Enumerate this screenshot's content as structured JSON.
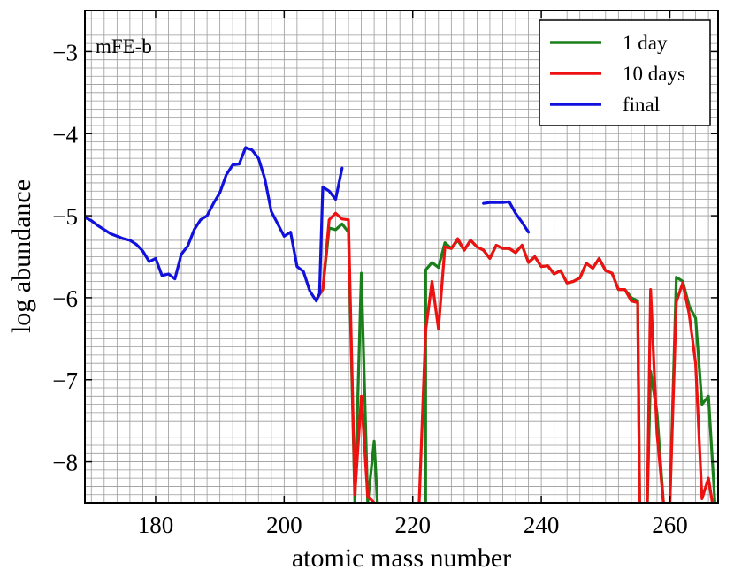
{
  "chart_data": {
    "type": "line",
    "xlabel": "atomic mass number",
    "ylabel": "log abundance",
    "xlim": [
      169,
      267.5
    ],
    "ylim": [
      -8.5,
      -2.5
    ],
    "x_ticks": [
      180,
      200,
      220,
      240,
      260
    ],
    "y_ticks": [
      -8,
      -7,
      -6,
      -5,
      -4,
      -3
    ],
    "x_tick_labels": [
      "180",
      "200",
      "220",
      "240",
      "260"
    ],
    "y_tick_labels": [
      "−8",
      "−7",
      "−6",
      "−5",
      "−4",
      "−3"
    ],
    "minor_grid": {
      "x_step": 2,
      "y_step": 0.1
    },
    "grid": true,
    "legend_position": "top-right",
    "annotation": "mFE-b",
    "series": [
      {
        "name": "1 day",
        "color": "#1a7f1a",
        "segments": [
          [
            [
              205,
              -6.02
            ],
            [
              206,
              -5.9
            ],
            [
              207,
              -5.15
            ],
            [
              208,
              -5.17
            ],
            [
              209,
              -5.1
            ],
            [
              210,
              -5.2
            ],
            [
              211,
              -8.5
            ],
            [
              212,
              -5.7
            ],
            [
              213,
              -8.5
            ],
            [
              214,
              -7.75
            ],
            [
              214.5,
              -8.5
            ]
          ],
          [
            [
              222,
              -8.5
            ],
            [
              222,
              -5.66
            ],
            [
              223,
              -5.57
            ],
            [
              224,
              -5.63
            ],
            [
              225,
              -5.33
            ],
            [
              226,
              -5.4
            ],
            [
              227,
              -5.3
            ],
            [
              228,
              -5.42
            ],
            [
              229,
              -5.3
            ],
            [
              230,
              -5.38
            ],
            [
              231,
              -5.42
            ],
            [
              232,
              -5.52
            ],
            [
              233,
              -5.36
            ],
            [
              234,
              -5.4
            ],
            [
              235,
              -5.4
            ],
            [
              236,
              -5.45
            ],
            [
              237,
              -5.36
            ],
            [
              238,
              -5.57
            ],
            [
              239,
              -5.5
            ],
            [
              240,
              -5.62
            ],
            [
              241,
              -5.61
            ],
            [
              242,
              -5.71
            ],
            [
              243,
              -5.67
            ],
            [
              244,
              -5.82
            ],
            [
              245,
              -5.8
            ],
            [
              246,
              -5.76
            ],
            [
              247,
              -5.58
            ],
            [
              248,
              -5.64
            ],
            [
              249,
              -5.52
            ],
            [
              250,
              -5.67
            ],
            [
              251,
              -5.7
            ],
            [
              252,
              -5.9
            ],
            [
              253,
              -5.9
            ],
            [
              254,
              -6.0
            ],
            [
              255,
              -6.04
            ],
            [
              255.3,
              -8.5
            ]
          ],
          [
            [
              256.5,
              -8.5
            ],
            [
              257,
              -6.9
            ],
            [
              258,
              -7.4
            ],
            [
              259,
              -8.5
            ]
          ],
          [
            [
              260,
              -8.5
            ],
            [
              261,
              -5.75
            ],
            [
              262,
              -5.8
            ],
            [
              263,
              -6.1
            ],
            [
              264,
              -6.25
            ],
            [
              265,
              -7.3
            ],
            [
              266,
              -7.2
            ],
            [
              267,
              -8.5
            ]
          ]
        ]
      },
      {
        "name": "10 days",
        "color": "#ee1111",
        "segments": [
          [
            [
              205,
              -6.02
            ],
            [
              206,
              -5.9
            ],
            [
              207,
              -5.05
            ],
            [
              208,
              -4.97
            ],
            [
              209,
              -5.04
            ],
            [
              210,
              -5.05
            ],
            [
              211,
              -8.4
            ],
            [
              212,
              -7.2
            ],
            [
              213,
              -8.42
            ],
            [
              214,
              -8.5
            ]
          ],
          [
            [
              221,
              -8.5
            ],
            [
              222,
              -6.4
            ],
            [
              223,
              -5.8
            ],
            [
              224,
              -6.38
            ],
            [
              225,
              -5.38
            ],
            [
              226,
              -5.4
            ],
            [
              227,
              -5.28
            ],
            [
              228,
              -5.42
            ],
            [
              229,
              -5.3
            ],
            [
              230,
              -5.38
            ],
            [
              231,
              -5.42
            ],
            [
              232,
              -5.52
            ],
            [
              233,
              -5.36
            ],
            [
              234,
              -5.4
            ],
            [
              235,
              -5.4
            ],
            [
              236,
              -5.45
            ],
            [
              237,
              -5.36
            ],
            [
              238,
              -5.57
            ],
            [
              239,
              -5.5
            ],
            [
              240,
              -5.62
            ],
            [
              241,
              -5.61
            ],
            [
              242,
              -5.71
            ],
            [
              243,
              -5.67
            ],
            [
              244,
              -5.82
            ],
            [
              245,
              -5.8
            ],
            [
              246,
              -5.76
            ],
            [
              247,
              -5.58
            ],
            [
              248,
              -5.64
            ],
            [
              249,
              -5.52
            ],
            [
              250,
              -5.67
            ],
            [
              251,
              -5.7
            ],
            [
              252,
              -5.9
            ],
            [
              253,
              -5.9
            ],
            [
              254,
              -6.04
            ],
            [
              255,
              -6.06
            ],
            [
              255.3,
              -8.5
            ]
          ],
          [
            [
              256.5,
              -8.5
            ],
            [
              257,
              -5.9
            ],
            [
              258,
              -7.65
            ],
            [
              259,
              -8.5
            ]
          ],
          [
            [
              260,
              -8.5
            ],
            [
              261,
              -6.05
            ],
            [
              262,
              -5.82
            ],
            [
              263,
              -6.2
            ],
            [
              264,
              -6.8
            ],
            [
              265,
              -8.45
            ],
            [
              266,
              -8.2
            ],
            [
              266.6,
              -8.5
            ]
          ]
        ]
      },
      {
        "name": "final",
        "color": "#1111dd",
        "segments": [
          [
            [
              169,
              -5.02
            ],
            [
              170,
              -5.06
            ],
            [
              171,
              -5.12
            ],
            [
              172,
              -5.17
            ],
            [
              173,
              -5.22
            ],
            [
              174,
              -5.25
            ],
            [
              175,
              -5.28
            ],
            [
              176,
              -5.3
            ],
            [
              177,
              -5.35
            ],
            [
              178,
              -5.43
            ],
            [
              179,
              -5.56
            ],
            [
              180,
              -5.52
            ],
            [
              181,
              -5.73
            ],
            [
              182,
              -5.71
            ],
            [
              183,
              -5.77
            ],
            [
              184,
              -5.47
            ],
            [
              185,
              -5.37
            ],
            [
              186,
              -5.17
            ],
            [
              187,
              -5.05
            ],
            [
              188,
              -5.0
            ],
            [
              189,
              -4.85
            ],
            [
              190,
              -4.72
            ],
            [
              191,
              -4.5
            ],
            [
              192,
              -4.38
            ],
            [
              193,
              -4.37
            ],
            [
              194,
              -4.17
            ],
            [
              195,
              -4.2
            ],
            [
              196,
              -4.3
            ],
            [
              197,
              -4.55
            ],
            [
              198,
              -4.95
            ],
            [
              199,
              -5.1
            ],
            [
              200,
              -5.25
            ],
            [
              201,
              -5.2
            ],
            [
              202,
              -5.62
            ],
            [
              203,
              -5.68
            ],
            [
              204,
              -5.92
            ],
            [
              205,
              -6.04
            ],
            [
              205.5,
              -5.95
            ],
            [
              206,
              -4.65
            ],
            [
              207,
              -4.7
            ],
            [
              208,
              -4.8
            ],
            [
              209,
              -4.42
            ]
          ],
          [
            [
              231,
              -4.85
            ],
            [
              232,
              -4.84
            ],
            [
              233,
              -4.84
            ],
            [
              234,
              -4.84
            ],
            [
              235,
              -4.83
            ],
            [
              236,
              -4.97
            ],
            [
              237,
              -5.08
            ],
            [
              238,
              -5.2
            ]
          ]
        ]
      }
    ]
  }
}
